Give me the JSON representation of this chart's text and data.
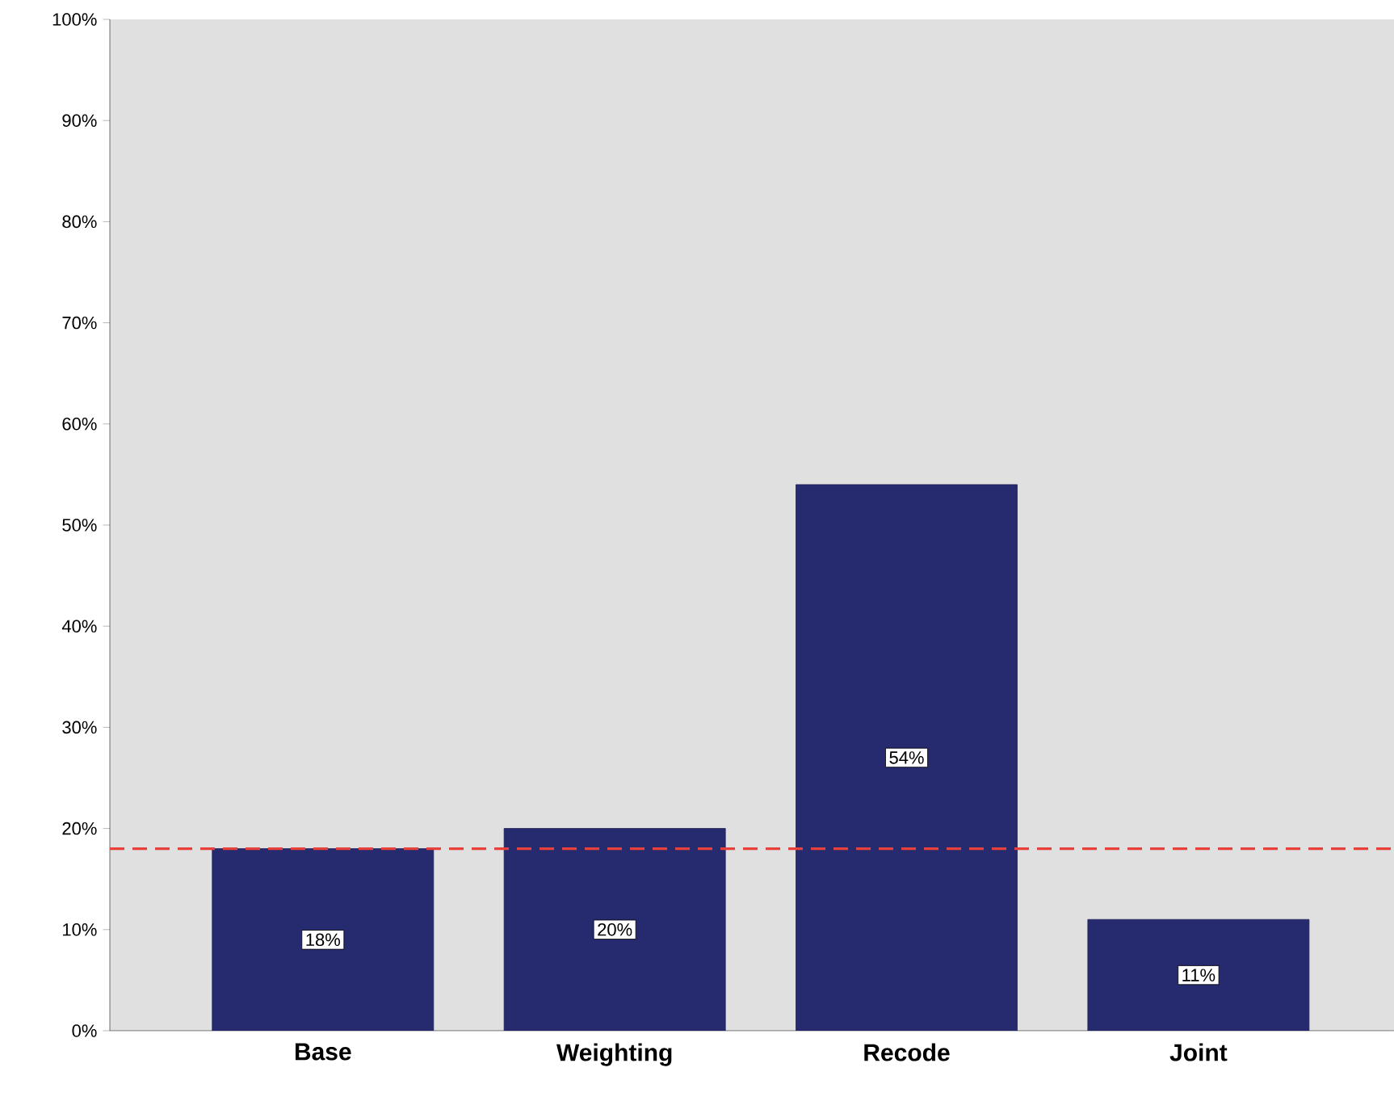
{
  "chart_data": {
    "type": "bar",
    "categories": [
      "Base",
      "Weighting",
      "Recode",
      "Joint"
    ],
    "values": [
      18,
      20,
      54,
      11
    ],
    "value_labels": [
      "18%",
      "20%",
      "54%",
      "11%"
    ],
    "color": "#262a6e",
    "ylim": [
      0,
      100
    ],
    "yticks": [
      {
        "value": 0,
        "label": "0%"
      },
      {
        "value": 10,
        "label": "10%"
      },
      {
        "value": 20,
        "label": "20%"
      },
      {
        "value": 30,
        "label": "30%"
      },
      {
        "value": 40,
        "label": "40%"
      },
      {
        "value": 50,
        "label": "50%"
      },
      {
        "value": 60,
        "label": "60%"
      },
      {
        "value": 70,
        "label": "70%"
      },
      {
        "value": 80,
        "label": "80%"
      },
      {
        "value": 90,
        "label": "90%"
      },
      {
        "value": 100,
        "label": "100%"
      }
    ],
    "ref_lines": [
      {
        "axis": "y",
        "value": 18,
        "color": "#e8413c",
        "line_style": "dashed"
      }
    ]
  }
}
